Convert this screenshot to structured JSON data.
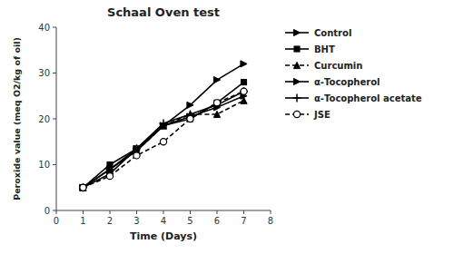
{
  "chart_data": {
    "type": "line",
    "title": "Schaal Oven test",
    "x_label": "Time (Days)",
    "y_label": "Peroxide value (meq O2/kg of oil)",
    "x": [
      1,
      2,
      3,
      4,
      5,
      6,
      7
    ],
    "xlim": [
      0,
      8
    ],
    "ylim": [
      0,
      40
    ],
    "xticks": [
      0,
      1,
      2,
      3,
      4,
      5,
      6,
      7,
      8
    ],
    "yticks": [
      0,
      10,
      20,
      30,
      40
    ],
    "legend": "right",
    "series": [
      {
        "name": "Control",
        "color": "#000000",
        "marker": "triangle-right",
        "line_style": "solid",
        "values": [
          5.0,
          8.0,
          13.5,
          18.5,
          23.0,
          28.5,
          32.0
        ]
      },
      {
        "name": "BHT",
        "color": "#000000",
        "marker": "square",
        "line_style": "solid",
        "values": [
          5.0,
          10.0,
          13.5,
          18.5,
          20.0,
          23.5,
          28.0
        ]
      },
      {
        "name": "Curcumin",
        "color": "#000000",
        "marker": "triangle-up",
        "line_style": "dashed",
        "values": [
          5.0,
          9.0,
          13.0,
          18.5,
          21.0,
          21.0,
          24.0
        ]
      },
      {
        "name": "α-Tocopherol",
        "color": "#000000",
        "marker": "triangle-right",
        "line_style": "solid",
        "values": [
          5.0,
          9.0,
          13.0,
          18.5,
          20.5,
          22.5,
          25.0
        ]
      },
      {
        "name": "α-Tocopherol acetate",
        "color": "#000000",
        "marker": "plus",
        "line_style": "solid",
        "values": [
          5.0,
          9.0,
          13.5,
          19.0,
          21.0,
          23.0,
          26.0
        ]
      },
      {
        "name": "JSE",
        "color": "#000000",
        "marker": "open-circle",
        "line_style": "dashed",
        "values": [
          5.0,
          7.5,
          12.0,
          15.0,
          20.0,
          23.5,
          26.0
        ]
      }
    ]
  }
}
